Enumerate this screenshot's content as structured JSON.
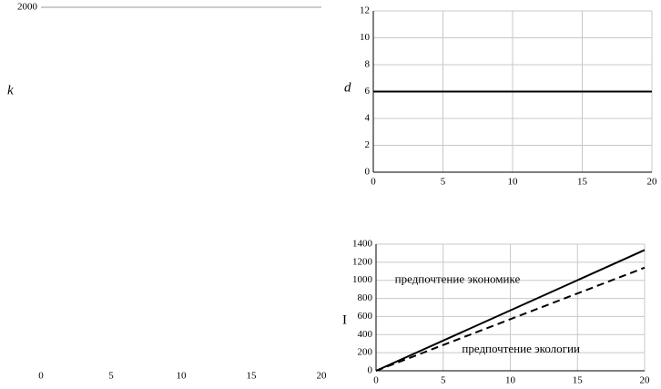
{
  "chart_data": [
    {
      "type": "line",
      "ylabel": "k",
      "xlim": [
        0,
        20
      ],
      "xticks": [
        0,
        5,
        10,
        15,
        20
      ],
      "ylim": [
        0,
        2000
      ],
      "yticks": [
        2000
      ],
      "grid": false,
      "series": []
    },
    {
      "type": "line",
      "ylabel": "d",
      "xlim": [
        0,
        20
      ],
      "xticks": [
        0,
        5,
        10,
        15,
        20
      ],
      "ylim": [
        0,
        12
      ],
      "yticks": [
        0,
        2,
        4,
        6,
        8,
        10,
        12
      ],
      "grid": true,
      "series": [
        {
          "color": "#000000",
          "dash": "solid",
          "x": [
            0,
            20
          ],
          "values": [
            6,
            6
          ]
        }
      ]
    },
    {
      "type": "line",
      "ylabel": "I",
      "xlim": [
        0,
        20
      ],
      "xticks": [
        0,
        5,
        10,
        15,
        20
      ],
      "ylim": [
        0,
        1400
      ],
      "yticks": [
        0,
        200,
        400,
        600,
        800,
        1000,
        1200,
        1400
      ],
      "grid": true,
      "series": [
        {
          "name": "предпочтение экономике",
          "color": "#000000",
          "dash": "solid",
          "x": [
            0,
            20
          ],
          "values": [
            0,
            1335
          ]
        },
        {
          "name": "предпочтение экологии",
          "color": "#000000",
          "dash": "dashed",
          "x": [
            0,
            20
          ],
          "values": [
            0,
            1140
          ]
        }
      ]
    }
  ]
}
